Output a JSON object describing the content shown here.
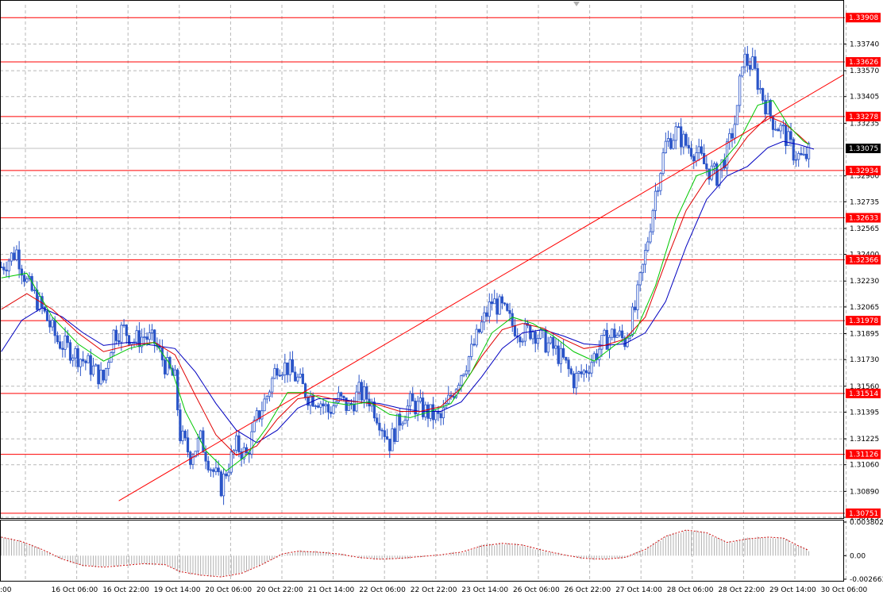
{
  "chart_data": {
    "type": "candlestick",
    "title": "",
    "symbol": "",
    "x_ticks": [
      ":00",
      "16 Oct 06:00",
      "16 Oct 22:00",
      "19 Oct 14:00",
      "20 Oct 06:00",
      "20 Oct 22:00",
      "21 Oct 14:00",
      "22 Oct 06:00",
      "22 Oct 22:00",
      "23 Oct 14:00",
      "26 Oct 06:00",
      "26 Oct 22:00",
      "27 Oct 14:00",
      "28 Oct 06:00",
      "28 Oct 22:00",
      "29 Oct 14:00",
      "30 Oct 06:00"
    ],
    "y_ticks": [
      "1.33740",
      "1.33570",
      "1.33405",
      "1.33235",
      "1.32900",
      "1.32735",
      "1.32565",
      "1.32400",
      "1.32230",
      "1.32065",
      "1.31895",
      "1.31730",
      "1.31560",
      "1.31395",
      "1.31225",
      "1.31060",
      "1.30890",
      "1.30725"
    ],
    "ylim": [
      1.30725,
      1.3399
    ],
    "current_price": "1.33075",
    "horizontal_levels": [
      "1.33908",
      "1.33626",
      "1.33278",
      "1.32934",
      "1.32633",
      "1.32366",
      "1.31978",
      "1.31514",
      "1.31126",
      "1.30751"
    ],
    "trendline": {
      "start": {
        "bar": 46,
        "price": 1.3083
      },
      "end": {
        "bar": 162,
        "price": 1.3194
      }
    },
    "close_path": [
      [
        0,
        1.3232
      ],
      [
        6,
        1.3242
      ],
      [
        10,
        1.3222
      ],
      [
        16,
        1.3205
      ],
      [
        22,
        1.3185
      ],
      [
        28,
        1.3178
      ],
      [
        34,
        1.317
      ],
      [
        40,
        1.316
      ],
      [
        44,
        1.319
      ],
      [
        48,
        1.3192
      ],
      [
        52,
        1.3185
      ],
      [
        56,
        1.3188
      ],
      [
        60,
        1.3184
      ],
      [
        64,
        1.317
      ],
      [
        68,
        1.316
      ],
      [
        70,
        1.3125
      ],
      [
        74,
        1.3112
      ],
      [
        78,
        1.3122
      ],
      [
        82,
        1.3105
      ],
      [
        86,
        1.3092
      ],
      [
        88,
        1.3102
      ],
      [
        92,
        1.3118
      ],
      [
        96,
        1.3112
      ],
      [
        100,
        1.3135
      ],
      [
        104,
        1.315
      ],
      [
        108,
        1.317
      ],
      [
        112,
        1.3168
      ],
      [
        116,
        1.316
      ],
      [
        120,
        1.315
      ],
      [
        124,
        1.3148
      ],
      [
        128,
        1.314
      ],
      [
        132,
        1.3148
      ],
      [
        136,
        1.3142
      ],
      [
        140,
        1.3152
      ],
      [
        144,
        1.3148
      ],
      [
        148,
        1.3135
      ],
      [
        152,
        1.312
      ],
      [
        156,
        1.3135
      ],
      [
        160,
        1.3145
      ],
      [
        164,
        1.3142
      ],
      [
        168,
        1.3138
      ],
      [
        172,
        1.3135
      ],
      [
        176,
        1.315
      ],
      [
        180,
        1.3165
      ],
      [
        184,
        1.3178
      ],
      [
        188,
        1.3195
      ],
      [
        192,
        1.321
      ],
      [
        196,
        1.3205
      ],
      [
        200,
        1.3195
      ],
      [
        204,
        1.319
      ],
      [
        208,
        1.3192
      ],
      [
        212,
        1.3185
      ],
      [
        216,
        1.318
      ],
      [
        220,
        1.3172
      ],
      [
        224,
        1.316
      ],
      [
        228,
        1.3165
      ],
      [
        232,
        1.3175
      ],
      [
        236,
        1.3185
      ],
      [
        240,
        1.319
      ],
      [
        244,
        1.3185
      ],
      [
        248,
        1.3205
      ],
      [
        252,
        1.324
      ],
      [
        256,
        1.328
      ],
      [
        260,
        1.331
      ],
      [
        264,
        1.3318
      ],
      [
        268,
        1.331
      ],
      [
        272,
        1.3305
      ],
      [
        276,
        1.3295
      ],
      [
        280,
        1.329
      ],
      [
        284,
        1.3305
      ],
      [
        288,
        1.333
      ],
      [
        290,
        1.3365
      ],
      [
        294,
        1.336
      ],
      [
        298,
        1.334
      ],
      [
        302,
        1.3325
      ],
      [
        306,
        1.3318
      ],
      [
        310,
        1.3305
      ],
      [
        314,
        1.33
      ],
      [
        316,
        1.3305
      ]
    ],
    "ma_green": [
      [
        0,
        1.3225
      ],
      [
        10,
        1.3228
      ],
      [
        20,
        1.32
      ],
      [
        30,
        1.3183
      ],
      [
        40,
        1.3172
      ],
      [
        50,
        1.318
      ],
      [
        60,
        1.3184
      ],
      [
        66,
        1.317
      ],
      [
        72,
        1.314
      ],
      [
        80,
        1.3115
      ],
      [
        88,
        1.3102
      ],
      [
        96,
        1.3112
      ],
      [
        104,
        1.313
      ],
      [
        112,
        1.3152
      ],
      [
        120,
        1.3152
      ],
      [
        128,
        1.3146
      ],
      [
        136,
        1.3144
      ],
      [
        144,
        1.3146
      ],
      [
        152,
        1.3138
      ],
      [
        160,
        1.3136
      ],
      [
        168,
        1.314
      ],
      [
        176,
        1.3145
      ],
      [
        184,
        1.3165
      ],
      [
        192,
        1.319
      ],
      [
        200,
        1.32
      ],
      [
        208,
        1.3196
      ],
      [
        216,
        1.3188
      ],
      [
        224,
        1.3178
      ],
      [
        232,
        1.3172
      ],
      [
        240,
        1.3182
      ],
      [
        248,
        1.319
      ],
      [
        256,
        1.322
      ],
      [
        264,
        1.3262
      ],
      [
        272,
        1.329
      ],
      [
        280,
        1.3295
      ],
      [
        288,
        1.331
      ],
      [
        296,
        1.3335
      ],
      [
        302,
        1.3338
      ],
      [
        308,
        1.3322
      ],
      [
        314,
        1.3312
      ],
      [
        316,
        1.331
      ]
    ],
    "ma_red": [
      [
        0,
        1.3205
      ],
      [
        10,
        1.3215
      ],
      [
        20,
        1.3205
      ],
      [
        30,
        1.319
      ],
      [
        40,
        1.3178
      ],
      [
        50,
        1.3182
      ],
      [
        60,
        1.3184
      ],
      [
        68,
        1.3176
      ],
      [
        76,
        1.315
      ],
      [
        84,
        1.3125
      ],
      [
        92,
        1.3112
      ],
      [
        100,
        1.3118
      ],
      [
        108,
        1.3135
      ],
      [
        116,
        1.3148
      ],
      [
        124,
        1.315
      ],
      [
        132,
        1.3147
      ],
      [
        140,
        1.3146
      ],
      [
        148,
        1.3144
      ],
      [
        156,
        1.314
      ],
      [
        164,
        1.314
      ],
      [
        172,
        1.3143
      ],
      [
        180,
        1.3155
      ],
      [
        188,
        1.3175
      ],
      [
        196,
        1.3192
      ],
      [
        204,
        1.3196
      ],
      [
        212,
        1.3193
      ],
      [
        220,
        1.3186
      ],
      [
        228,
        1.318
      ],
      [
        236,
        1.3182
      ],
      [
        244,
        1.3186
      ],
      [
        252,
        1.32
      ],
      [
        260,
        1.3235
      ],
      [
        268,
        1.3268
      ],
      [
        276,
        1.3288
      ],
      [
        284,
        1.3297
      ],
      [
        292,
        1.3315
      ],
      [
        300,
        1.3328
      ],
      [
        306,
        1.3324
      ],
      [
        312,
        1.3316
      ],
      [
        316,
        1.331
      ]
    ],
    "ma_blue": [
      [
        0,
        1.3178
      ],
      [
        8,
        1.3198
      ],
      [
        16,
        1.3206
      ],
      [
        24,
        1.32
      ],
      [
        32,
        1.319
      ],
      [
        40,
        1.3182
      ],
      [
        50,
        1.3184
      ],
      [
        60,
        1.3182
      ],
      [
        68,
        1.318
      ],
      [
        76,
        1.3165
      ],
      [
        84,
        1.3145
      ],
      [
        92,
        1.3128
      ],
      [
        100,
        1.312
      ],
      [
        108,
        1.3128
      ],
      [
        116,
        1.3142
      ],
      [
        124,
        1.3148
      ],
      [
        132,
        1.3148
      ],
      [
        140,
        1.3146
      ],
      [
        148,
        1.3145
      ],
      [
        156,
        1.3142
      ],
      [
        164,
        1.314
      ],
      [
        172,
        1.314
      ],
      [
        180,
        1.3146
      ],
      [
        188,
        1.3162
      ],
      [
        196,
        1.318
      ],
      [
        204,
        1.319
      ],
      [
        212,
        1.3192
      ],
      [
        220,
        1.3188
      ],
      [
        228,
        1.3183
      ],
      [
        236,
        1.3182
      ],
      [
        244,
        1.3183
      ],
      [
        252,
        1.319
      ],
      [
        260,
        1.321
      ],
      [
        268,
        1.3245
      ],
      [
        276,
        1.3275
      ],
      [
        284,
        1.329
      ],
      [
        292,
        1.3296
      ],
      [
        300,
        1.3308
      ],
      [
        306,
        1.3312
      ],
      [
        312,
        1.331
      ],
      [
        318,
        1.3307
      ]
    ],
    "indicator": {
      "y_ticks": [
        "0.003802",
        "0.00",
        "-0.002663"
      ],
      "ylim": [
        -0.002663,
        0.003802
      ],
      "path": [
        [
          0,
          0.0021
        ],
        [
          8,
          0.0016
        ],
        [
          16,
          0.0007
        ],
        [
          24,
          -0.0004
        ],
        [
          32,
          -0.0011
        ],
        [
          40,
          -0.0013
        ],
        [
          48,
          -0.0011
        ],
        [
          56,
          -0.0009
        ],
        [
          64,
          -0.001
        ],
        [
          70,
          -0.0018
        ],
        [
          78,
          -0.0022
        ],
        [
          86,
          -0.0024
        ],
        [
          94,
          -0.002
        ],
        [
          102,
          -0.001
        ],
        [
          110,
          0.0002
        ],
        [
          116,
          0.0005
        ],
        [
          124,
          0.0004
        ],
        [
          132,
          0.0002
        ],
        [
          140,
          -0.0002
        ],
        [
          148,
          -0.0004
        ],
        [
          156,
          -0.0003
        ],
        [
          164,
          -0.0001
        ],
        [
          172,
          0.0001
        ],
        [
          180,
          0.0004
        ],
        [
          188,
          0.0011
        ],
        [
          196,
          0.0014
        ],
        [
          204,
          0.0012
        ],
        [
          212,
          0.0006
        ],
        [
          220,
          0.0001
        ],
        [
          228,
          -0.0003
        ],
        [
          236,
          -0.0004
        ],
        [
          244,
          -0.0002
        ],
        [
          252,
          0.0007
        ],
        [
          260,
          0.0022
        ],
        [
          268,
          0.0029
        ],
        [
          276,
          0.0026
        ],
        [
          284,
          0.0015
        ],
        [
          292,
          0.0019
        ],
        [
          300,
          0.0021
        ],
        [
          306,
          0.002
        ],
        [
          312,
          0.0011
        ],
        [
          316,
          0.0006
        ]
      ]
    },
    "grid": true,
    "colors": {
      "bull": "#2b55c8",
      "bear": "#2b55c8",
      "level": "#ff0000",
      "ma_green": "#00c800",
      "ma_red": "#e00000",
      "ma_blue": "#0000c0",
      "indicator": "#d01010",
      "histogram": "#b0b0b0"
    }
  }
}
